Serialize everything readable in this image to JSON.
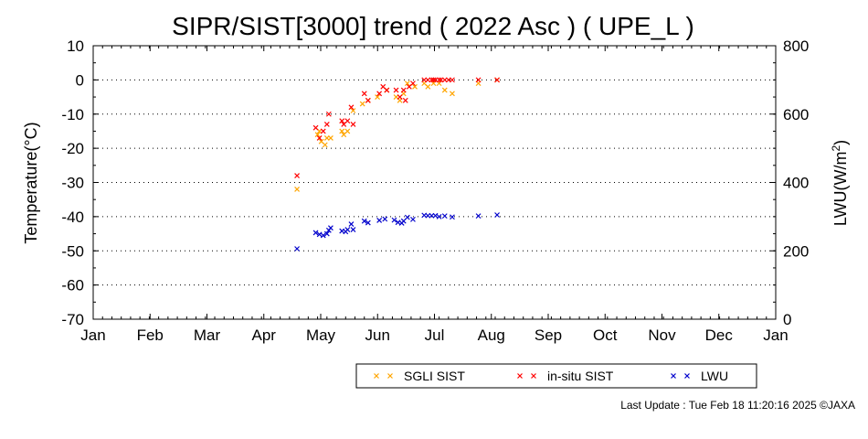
{
  "chart_data": {
    "type": "scatter",
    "title": "SIPR/SIST[3000] trend ( 2022 Asc ) ( UPE_L )",
    "ylabel": "Temperature(°C)",
    "y2label_main": "LWU(W/m",
    "y2label_sup": "2",
    "y2label_tail": ")",
    "xlabel": "",
    "x_ticks": [
      "Jan",
      "Feb",
      "Mar",
      "Apr",
      "May",
      "Jun",
      "Jul",
      "Aug",
      "Sep",
      "Oct",
      "Nov",
      "Dec",
      "Jan"
    ],
    "ylim": [
      -70,
      10
    ],
    "y_ticks": [
      "10",
      "0",
      "-10",
      "-20",
      "-30",
      "-40",
      "-50",
      "-60",
      "-70"
    ],
    "y2lim": [
      0,
      800
    ],
    "y2_ticks": [
      "800",
      "600",
      "400",
      "200",
      "0"
    ],
    "grid": true,
    "legend": "bottom",
    "series": [
      {
        "name": "SGLI SIST",
        "color": "#ffa500",
        "axis": "left",
        "points": [
          [
            "2022-04-20",
            -32
          ],
          [
            "2022-05-01",
            -16
          ],
          [
            "2022-05-02",
            -15
          ],
          [
            "2022-05-03",
            -18
          ],
          [
            "2022-05-05",
            -19
          ],
          [
            "2022-05-06",
            -17
          ],
          [
            "2022-05-08",
            -17
          ],
          [
            "2022-05-14",
            -15
          ],
          [
            "2022-05-15",
            -16
          ],
          [
            "2022-05-17",
            -15
          ],
          [
            "2022-05-20",
            -9
          ],
          [
            "2022-05-25",
            -7
          ],
          [
            "2022-05-28",
            -6
          ],
          [
            "2022-06-02",
            -5
          ],
          [
            "2022-06-07",
            -3
          ],
          [
            "2022-06-12",
            -5
          ],
          [
            "2022-06-14",
            -6
          ],
          [
            "2022-06-16",
            -4
          ],
          [
            "2022-06-18",
            -1
          ],
          [
            "2022-06-22",
            -2
          ],
          [
            "2022-06-27",
            -1
          ],
          [
            "2022-06-29",
            -2
          ],
          [
            "2022-07-02",
            -1
          ],
          [
            "2022-07-05",
            -1
          ],
          [
            "2022-07-08",
            -3
          ],
          [
            "2022-07-12",
            -4
          ],
          [
            "2022-07-26",
            -1
          ],
          [
            "2022-08-05",
            0
          ]
        ]
      },
      {
        "name": "in-situ SIST",
        "color": "#ff0000",
        "axis": "left",
        "points": [
          [
            "2022-04-20",
            -28
          ],
          [
            "2022-04-30",
            -14
          ],
          [
            "2022-05-02",
            -17
          ],
          [
            "2022-05-04",
            -15
          ],
          [
            "2022-05-06",
            -13
          ],
          [
            "2022-05-07",
            -10
          ],
          [
            "2022-05-14",
            -12
          ],
          [
            "2022-05-15",
            -13
          ],
          [
            "2022-05-17",
            -12
          ],
          [
            "2022-05-19",
            -8
          ],
          [
            "2022-05-20",
            -13
          ],
          [
            "2022-05-26",
            -4
          ],
          [
            "2022-05-28",
            -6
          ],
          [
            "2022-06-03",
            -4
          ],
          [
            "2022-06-05",
            -2
          ],
          [
            "2022-06-07",
            -3
          ],
          [
            "2022-06-12",
            -3
          ],
          [
            "2022-06-14",
            -5
          ],
          [
            "2022-06-16",
            -3
          ],
          [
            "2022-06-17",
            -6
          ],
          [
            "2022-06-19",
            -2
          ],
          [
            "2022-06-21",
            -1
          ],
          [
            "2022-06-27",
            0
          ],
          [
            "2022-06-29",
            0
          ],
          [
            "2022-07-01",
            0
          ],
          [
            "2022-07-02",
            0
          ],
          [
            "2022-07-03",
            0
          ],
          [
            "2022-07-05",
            0
          ],
          [
            "2022-07-06",
            0
          ],
          [
            "2022-07-08",
            0
          ],
          [
            "2022-07-10",
            0
          ],
          [
            "2022-07-12",
            0
          ],
          [
            "2022-07-26",
            0
          ],
          [
            "2022-08-05",
            0
          ]
        ]
      },
      {
        "name": "LWU",
        "color": "#0000cc",
        "axis": "right",
        "points": [
          [
            "2022-04-20",
            206
          ],
          [
            "2022-04-30",
            253
          ],
          [
            "2022-05-02",
            248
          ],
          [
            "2022-05-04",
            245
          ],
          [
            "2022-05-06",
            250
          ],
          [
            "2022-05-07",
            260
          ],
          [
            "2022-05-08",
            267
          ],
          [
            "2022-05-14",
            258
          ],
          [
            "2022-05-16",
            256
          ],
          [
            "2022-05-17",
            262
          ],
          [
            "2022-05-19",
            278
          ],
          [
            "2022-05-20",
            262
          ],
          [
            "2022-05-26",
            287
          ],
          [
            "2022-05-28",
            282
          ],
          [
            "2022-06-03",
            289
          ],
          [
            "2022-06-06",
            293
          ],
          [
            "2022-06-11",
            290
          ],
          [
            "2022-06-13",
            283
          ],
          [
            "2022-06-15",
            281
          ],
          [
            "2022-06-16",
            287
          ],
          [
            "2022-06-18",
            298
          ],
          [
            "2022-06-21",
            292
          ],
          [
            "2022-06-27",
            304
          ],
          [
            "2022-06-29",
            303
          ],
          [
            "2022-07-01",
            303
          ],
          [
            "2022-07-03",
            303
          ],
          [
            "2022-07-05",
            300
          ],
          [
            "2022-07-08",
            302
          ],
          [
            "2022-07-12",
            299
          ],
          [
            "2022-07-26",
            302
          ],
          [
            "2022-08-05",
            305
          ]
        ]
      }
    ]
  },
  "footer": {
    "last_update": "Last Update : Tue Feb 18 11:20:16 2025  ©JAXA"
  }
}
